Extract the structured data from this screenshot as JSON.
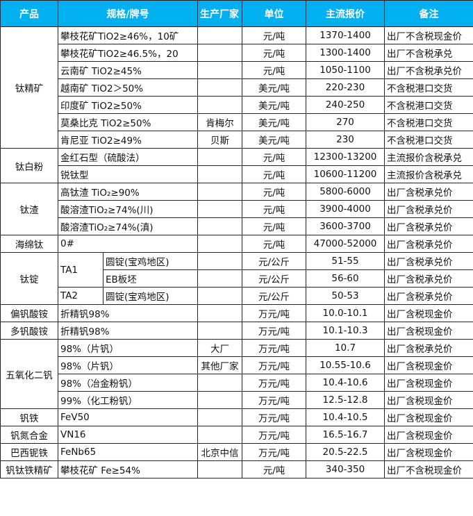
{
  "header": {
    "product": "产品",
    "spec": "规格/牌号",
    "maker": "生产厂家",
    "unit": "单位",
    "price": "主流报价",
    "note": "备注"
  },
  "header_color": "#00b0f0",
  "groups": [
    {
      "product": "钛精矿",
      "rows": [
        {
          "spec": "攀枝花矿TiO2≥46%，10矿",
          "maker": "",
          "unit": "元/吨",
          "price": "1370-1400",
          "note": "出厂不含税现金价"
        },
        {
          "spec": "攀枝花矿TiO2≥46.5%，20",
          "maker": "",
          "unit": "元/吨",
          "price": "1300-1400",
          "note": "出厂不含税承兑"
        },
        {
          "spec": "云南矿 TiO2≥45%",
          "maker": "",
          "unit": "元/吨",
          "price": "1050-1100",
          "note": "出厂不含税承兑价"
        },
        {
          "spec": "越南矿 TiO2＞50%",
          "maker": "",
          "unit": "美元/吨",
          "price": "220-230",
          "note": "不含税港口交货"
        },
        {
          "spec": "印度矿 TiO2≥50%",
          "maker": "",
          "unit": "美元/吨",
          "price": "240-250",
          "note": "不含税港口交货"
        },
        {
          "spec": "莫桑比克 TiO2≥50%",
          "maker": "肯梅尔",
          "unit": "美元/吨",
          "price": "270",
          "note": "不含税港口交货"
        },
        {
          "spec": "肯尼亚 TiO2≥49%",
          "maker": "贝斯",
          "unit": "美元/吨",
          "price": "230",
          "note": "不含税港口交货"
        }
      ]
    },
    {
      "product": "钛白粉",
      "rows": [
        {
          "spec": "金红石型（硫酸法）",
          "maker": "",
          "unit": "元/吨",
          "price": "12300-13200",
          "note": "主流报价含税承兑"
        },
        {
          "spec": "锐钛型",
          "maker": "",
          "unit": "元/吨",
          "price": "10600-11200",
          "note": "主流报价含税承兑"
        }
      ]
    },
    {
      "product": "钛渣",
      "rows": [
        {
          "spec": "高钛渣 TiO₂≥90%",
          "maker": "",
          "unit": "元/吨",
          "price": "5800-6000",
          "note": "出厂含税承兑价"
        },
        {
          "spec": "酸溶渣TiO₂≥74%(川)",
          "maker": "",
          "unit": "元/吨",
          "price": "3900-4000",
          "note": "出厂含税承兑价"
        },
        {
          "spec": "酸溶渣TiO₂≥74%(滇)",
          "maker": "",
          "unit": "元/吨",
          "price": "3600-3700",
          "note": "出厂含税承兑价"
        }
      ]
    },
    {
      "product": "海绵钛",
      "rows": [
        {
          "spec": "0#",
          "maker": "",
          "unit": "元/吨",
          "price": "47000-52000",
          "note": "出厂含税承兑价"
        }
      ]
    },
    {
      "product": "钛锭",
      "rows": [
        {
          "grade": "TA1",
          "form": "圆锭(宝鸡地区)",
          "maker": "",
          "unit": "元/公斤",
          "price": "51-55",
          "note": "出厂含税承兑价"
        },
        {
          "form": "EB板坯",
          "maker": "",
          "unit": "元/公斤",
          "price": "56-60",
          "note": "出厂含税承兑价"
        },
        {
          "grade": "TA2",
          "form": "圆锭(宝鸡地区)",
          "maker": "",
          "unit": "元/公斤",
          "price": "50-53",
          "note": "出厂含税承兑价"
        }
      ]
    },
    {
      "product": "偏钒酸铵",
      "rows": [
        {
          "spec": "折精钒98%",
          "maker": "",
          "unit": "万元/吨",
          "price": "10.0-10.1",
          "note": "出厂含税现金价"
        }
      ]
    },
    {
      "product": "多钒酸铵",
      "rows": [
        {
          "spec": "折精钒98%",
          "maker": "",
          "unit": "万元/吨",
          "price": "10.1-10.3",
          "note": "出厂含税现金价"
        }
      ]
    },
    {
      "product": "五氧化二钒",
      "rows": [
        {
          "spec": "98%（片钒）",
          "maker": "大厂",
          "unit": "万元/吨",
          "price": "10.7",
          "note": "出厂含税承兑价"
        },
        {
          "spec": "98%（片钒）",
          "maker": "其他厂家",
          "unit": "万元/吨",
          "price": "10.55-10.6",
          "note": "出厂含税现金价"
        },
        {
          "spec": "98%（冶金粉钒）",
          "maker": "",
          "unit": "万元/吨",
          "price": "10.4-10.6",
          "note": "出厂含税现金价"
        },
        {
          "spec": "99%（化工粉钒）",
          "maker": "",
          "unit": "万元/吨",
          "price": "12.5-12.8",
          "note": "出厂含税现金价"
        }
      ]
    },
    {
      "product": "钒铁",
      "rows": [
        {
          "spec": "FeV50",
          "maker": "",
          "unit": "万元/吨",
          "price": "10.4-10.5",
          "note": "出厂含税现金价"
        }
      ]
    },
    {
      "product": "钒氮合金",
      "rows": [
        {
          "spec": "VN16",
          "maker": "",
          "unit": "万元/吨",
          "price": "16.5-16.7",
          "note": "出厂含税现金价"
        }
      ]
    },
    {
      "product": "巴西铌铁",
      "rows": [
        {
          "spec": "FeNb65",
          "maker": "北京中信",
          "unit": "万元/吨",
          "price": "20.5-22.5",
          "note": "出厂含税现金价"
        }
      ]
    },
    {
      "product": "钒钛铁精矿",
      "rows": [
        {
          "spec": "攀枝花矿 Fe≥54%",
          "maker": "",
          "unit": "元/吨",
          "price": "340-350",
          "note": "出厂不含税现金价"
        }
      ]
    }
  ]
}
